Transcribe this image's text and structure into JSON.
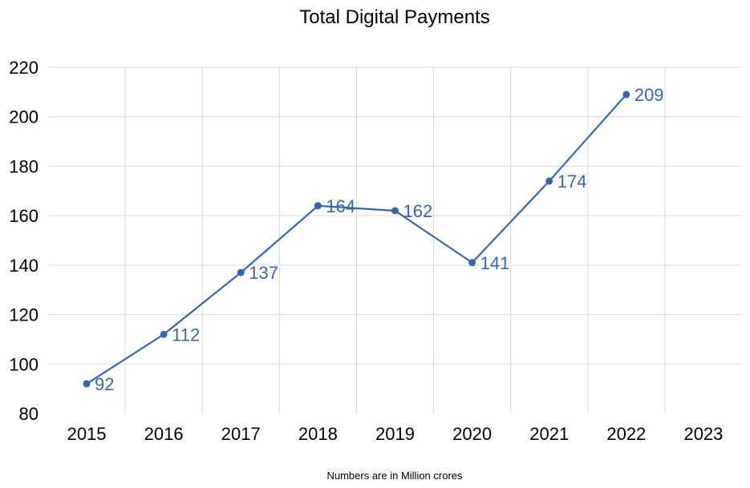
{
  "chart_data": {
    "type": "line",
    "title": "Total Digital Payments",
    "note": "Numbers are in Million crores",
    "categories": [
      "2015",
      "2016",
      "2017",
      "2018",
      "2019",
      "2020",
      "2021",
      "2022",
      "2023"
    ],
    "series": [
      {
        "values": [
          92,
          112,
          137,
          164,
          162,
          141,
          174,
          209,
          null
        ],
        "color": "#3a63b0"
      }
    ],
    "ylim": [
      80,
      220
    ],
    "yticks": [
      80,
      100,
      120,
      140,
      160,
      180,
      200,
      220
    ],
    "grid": true,
    "data_labels": true,
    "xlabel": "",
    "ylabel": ""
  }
}
